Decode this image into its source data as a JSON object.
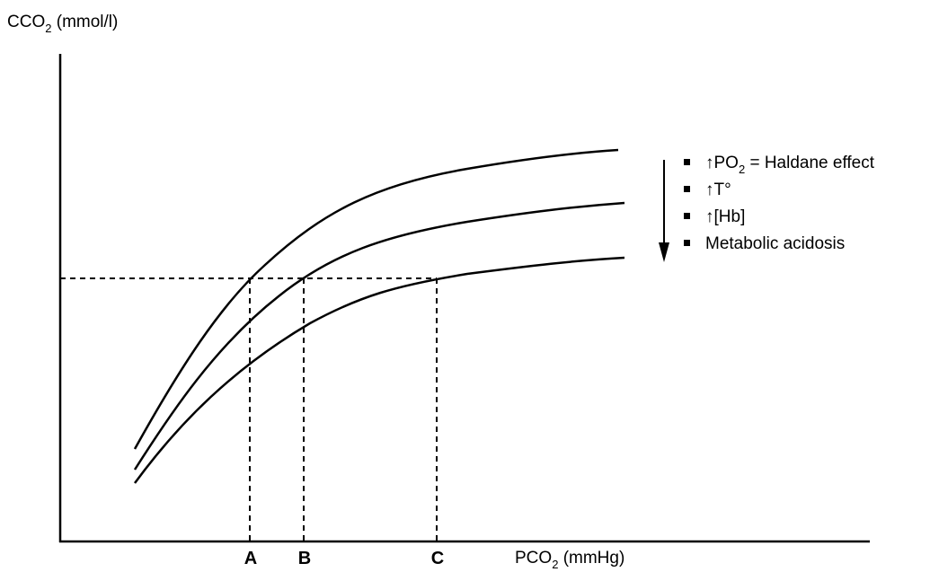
{
  "chart_data": {
    "type": "line",
    "title": "",
    "ylabel": {
      "main": "CCO",
      "sub": "2",
      "unit": " (mmol/l)"
    },
    "xlabel": {
      "main": "PCO",
      "sub": "2",
      "unit": " (mmHg)"
    },
    "ticks": [
      "A",
      "B",
      "C"
    ],
    "grid": false,
    "series": [
      {
        "x": [
          0,
          1,
          2,
          3,
          4,
          5,
          6,
          7,
          8,
          9,
          10
        ],
        "y": [
          1.3,
          3.2,
          4.8,
          6.0,
          6.8,
          7.3,
          7.65,
          7.9,
          8.1,
          8.25,
          8.4
        ]
      },
      {
        "x": [
          0,
          1,
          2,
          3,
          4,
          5,
          6,
          7,
          8,
          9,
          10
        ],
        "y": [
          0.9,
          2.4,
          3.9,
          5.1,
          5.9,
          6.4,
          6.8,
          7.05,
          7.25,
          7.4,
          7.55
        ]
      },
      {
        "x": [
          0,
          1,
          2,
          3,
          4,
          5,
          6,
          7,
          8,
          9,
          10
        ],
        "y": [
          0.6,
          1.8,
          2.9,
          3.9,
          4.6,
          5.1,
          5.5,
          5.8,
          6.05,
          6.25,
          6.4
        ]
      }
    ],
    "reference_line_y": 5.2,
    "legend": {
      "placement": "right",
      "arrow_direction": "down",
      "items": [
        {
          "prefix": "↑",
          "main": "PO",
          "sub": "2",
          "rest": " = Haldane effect"
        },
        {
          "prefix": "↑",
          "main": "T°",
          "sub": "",
          "rest": ""
        },
        {
          "prefix": "↑",
          "main": "[Hb]",
          "sub": "",
          "rest": ""
        },
        {
          "prefix": "",
          "main": "Metabolic acidosis",
          "sub": "",
          "rest": ""
        }
      ]
    }
  }
}
